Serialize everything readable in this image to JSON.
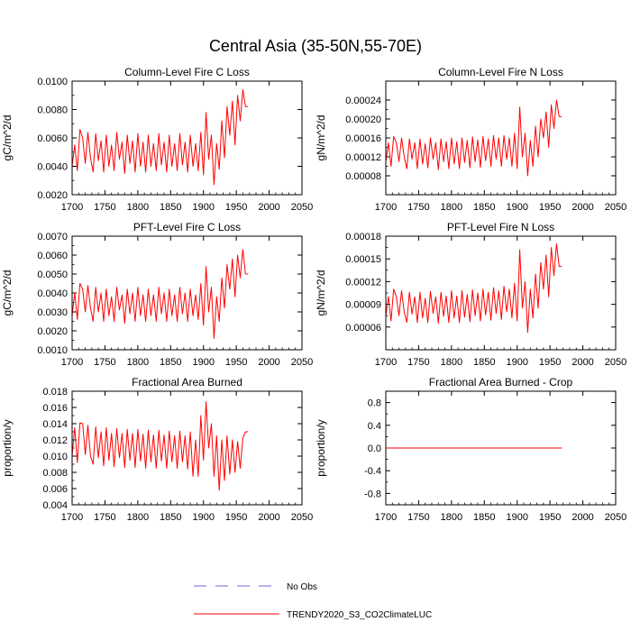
{
  "figure": {
    "title": "Central Asia (35-50N,55-70E)"
  },
  "colors": {
    "model_line": "#ff0000",
    "obs_line": "#6a6adf",
    "axis": "#000000"
  },
  "legend": {
    "entries": [
      {
        "label": "No Obs",
        "style": "dashed",
        "color": "#6a6adf"
      },
      {
        "label": "TRENDY2020_S3_CO2ClimateLUC",
        "style": "solid",
        "color": "#ff0000"
      }
    ]
  },
  "chart_data": [
    {
      "type": "line",
      "title": "Column-Level Fire C Loss",
      "ylabel": "gC/m^2/d",
      "xlabel": "",
      "xlim": [
        1700,
        2050
      ],
      "ylim": [
        0.002,
        0.01
      ],
      "xticks": [
        1700,
        1750,
        1800,
        1850,
        1900,
        1950,
        2000,
        2050
      ],
      "xtick_labels": [
        "1700",
        "1750",
        "1800",
        "1850",
        "1900",
        "1950",
        "2000",
        "2050"
      ],
      "yticks": [
        0.002,
        0.004,
        0.006,
        0.008,
        0.01
      ],
      "ytick_labels": [
        "0.0020",
        "0.0040",
        "0.0060",
        "0.0080",
        "0.0100"
      ],
      "series": [
        {
          "name": "TRENDY2020_S3_CO2ClimateLUC",
          "x_start": 1700,
          "x_step": 4,
          "values": [
            0.004,
            0.0055,
            0.0037,
            0.0066,
            0.006,
            0.0042,
            0.0064,
            0.0046,
            0.0036,
            0.0063,
            0.0044,
            0.0058,
            0.0036,
            0.0062,
            0.004,
            0.0055,
            0.0037,
            0.0064,
            0.0045,
            0.0057,
            0.0035,
            0.0062,
            0.0042,
            0.0058,
            0.0036,
            0.0063,
            0.004,
            0.0057,
            0.0036,
            0.0062,
            0.004,
            0.0056,
            0.0037,
            0.0063,
            0.0041,
            0.0057,
            0.0036,
            0.0062,
            0.004,
            0.0056,
            0.0037,
            0.0063,
            0.0041,
            0.0057,
            0.0036,
            0.0062,
            0.004,
            0.0056,
            0.0037,
            0.0064,
            0.0034,
            0.0078,
            0.0045,
            0.0062,
            0.0027,
            0.0056,
            0.0038,
            0.0072,
            0.0046,
            0.0082,
            0.0062,
            0.0086,
            0.0055,
            0.009,
            0.0072,
            0.0094,
            0.0082,
            0.0082
          ]
        }
      ]
    },
    {
      "type": "line",
      "title": "Column-Level Fire N Loss",
      "ylabel": "gN/m^2/d",
      "xlabel": "",
      "xlim": [
        1700,
        2050
      ],
      "ylim": [
        4e-05,
        0.00028
      ],
      "xticks": [
        1700,
        1750,
        1800,
        1850,
        1900,
        1950,
        2000,
        2050
      ],
      "xtick_labels": [
        "1700",
        "1750",
        "1800",
        "1850",
        "1900",
        "1950",
        "2000",
        "2050"
      ],
      "yticks": [
        8e-05,
        0.00012,
        0.00016,
        0.0002,
        0.00024
      ],
      "ytick_labels": [
        "0.00008",
        "0.00012",
        "0.00016",
        "0.00020",
        "0.00024"
      ],
      "series": [
        {
          "name": "TRENDY2020_S3_CO2ClimateLUC",
          "x_start": 1700,
          "x_step": 4,
          "values": [
            0.00011,
            0.00015,
            0.0001,
            0.000163,
            0.00015,
            0.00011,
            0.00016,
            0.00012,
            9.5e-05,
            0.000158,
            0.000115,
            0.00015,
            9.5e-05,
            0.000158,
            0.000105,
            0.000148,
            9.7e-05,
            0.00016,
            0.000115,
            0.00015,
            9.3e-05,
            0.000158,
            0.00011,
            0.000152,
            9.5e-05,
            0.00016,
            0.000105,
            0.000152,
            9.5e-05,
            0.00016,
            0.000108,
            0.000155,
            9.7e-05,
            0.000162,
            0.00011,
            0.000156,
            9.8e-05,
            0.000163,
            0.000112,
            0.000158,
            0.0001,
            0.000165,
            0.000115,
            0.00016,
            0.0001,
            0.000165,
            0.000115,
            0.00016,
            0.0001,
            0.00017,
            9.5e-05,
            0.000225,
            0.00012,
            0.00017,
            8e-05,
            0.000155,
            0.0001,
            0.000185,
            0.00012,
            0.0002,
            0.00016,
            0.000215,
            0.00014,
            0.00023,
            0.00018,
            0.00024,
            0.000205,
            0.000205
          ]
        }
      ]
    },
    {
      "type": "line",
      "title": "PFT-Level Fire C Loss",
      "ylabel": "gC/m^2/d",
      "xlabel": "",
      "xlim": [
        1700,
        2050
      ],
      "ylim": [
        0.001,
        0.007
      ],
      "xticks": [
        1700,
        1750,
        1800,
        1850,
        1900,
        1950,
        2000,
        2050
      ],
      "xtick_labels": [
        "1700",
        "1750",
        "1800",
        "1850",
        "1900",
        "1950",
        "2000",
        "2050"
      ],
      "yticks": [
        0.001,
        0.002,
        0.003,
        0.004,
        0.005,
        0.006,
        0.007
      ],
      "ytick_labels": [
        "0.0010",
        "0.0020",
        "0.0030",
        "0.0040",
        "0.0050",
        "0.0060",
        "0.0070"
      ],
      "series": [
        {
          "name": "TRENDY2020_S3_CO2ClimateLUC",
          "x_start": 1700,
          "x_step": 4,
          "values": [
            0.0028,
            0.004,
            0.0026,
            0.0045,
            0.0042,
            0.003,
            0.0044,
            0.0032,
            0.0025,
            0.0043,
            0.003,
            0.004,
            0.0025,
            0.0042,
            0.0028,
            0.0038,
            0.0025,
            0.0043,
            0.0031,
            0.0039,
            0.0024,
            0.0042,
            0.0029,
            0.004,
            0.0025,
            0.0043,
            0.0028,
            0.0039,
            0.0025,
            0.0042,
            0.0028,
            0.0039,
            0.0025,
            0.0043,
            0.0029,
            0.004,
            0.0025,
            0.0042,
            0.0028,
            0.0039,
            0.0025,
            0.0043,
            0.0029,
            0.004,
            0.0025,
            0.0042,
            0.0028,
            0.0039,
            0.0026,
            0.0045,
            0.0023,
            0.0054,
            0.003,
            0.0043,
            0.0016,
            0.0038,
            0.0025,
            0.0048,
            0.0032,
            0.0055,
            0.0042,
            0.0058,
            0.0038,
            0.006,
            0.0048,
            0.0063,
            0.005,
            0.005
          ]
        }
      ]
    },
    {
      "type": "line",
      "title": "PFT-Level Fire N Loss",
      "ylabel": "gN/m^2/d",
      "xlabel": "",
      "xlim": [
        1700,
        2050
      ],
      "ylim": [
        3e-05,
        0.00018
      ],
      "xticks": [
        1700,
        1750,
        1800,
        1850,
        1900,
        1950,
        2000,
        2050
      ],
      "xtick_labels": [
        "1700",
        "1750",
        "1800",
        "1850",
        "1900",
        "1950",
        "2000",
        "2050"
      ],
      "yticks": [
        6e-05,
        9e-05,
        0.00012,
        0.00015,
        0.00018
      ],
      "ytick_labels": [
        "0.00006",
        "0.00009",
        "0.00012",
        "0.00015",
        "0.00018"
      ],
      "series": [
        {
          "name": "TRENDY2020_S3_CO2ClimateLUC",
          "x_start": 1700,
          "x_step": 4,
          "values": [
            7.5e-05,
            0.0001,
            6.8e-05,
            0.00011,
            0.0001,
            7.5e-05,
            0.000108,
            8e-05,
            6.6e-05,
            0.000106,
            7.7e-05,
            0.0001,
            6.6e-05,
            0.000106,
            7.2e-05,
            9.8e-05,
            6.6e-05,
            0.000107,
            7.8e-05,
            0.0001,
            6.5e-05,
            0.000106,
            7.4e-05,
            0.000101,
            6.6e-05,
            0.000108,
            7.2e-05,
            0.000101,
            6.6e-05,
            0.000108,
            7.3e-05,
            0.000103,
            6.7e-05,
            0.000109,
            7.5e-05,
            0.000105,
            6.8e-05,
            0.00011,
            7.6e-05,
            0.000106,
            6.9e-05,
            0.000112,
            7.8e-05,
            0.000108,
            7e-05,
            0.000114,
            8e-05,
            0.00011,
            7.2e-05,
            0.000118,
            6.8e-05,
            0.000162,
            8.5e-05,
            0.00012,
            5.3e-05,
            0.00011,
            7.2e-05,
            0.00013,
            8.5e-05,
            0.000145,
            0.00011,
            0.000155,
            0.0001,
            0.000165,
            0.000128,
            0.00017,
            0.00014,
            0.00014
          ]
        }
      ]
    },
    {
      "type": "line",
      "title": "Fractional Area Burned",
      "ylabel": "proportion/y",
      "xlabel": "",
      "xlim": [
        1700,
        2050
      ],
      "ylim": [
        0.004,
        0.018
      ],
      "xticks": [
        1700,
        1750,
        1800,
        1850,
        1900,
        1950,
        2000,
        2050
      ],
      "xtick_labels": [
        "1700",
        "1750",
        "1800",
        "1850",
        "1900",
        "1950",
        "2000",
        "2050"
      ],
      "yticks": [
        0.004,
        0.006,
        0.008,
        0.01,
        0.012,
        0.014,
        0.016,
        0.018
      ],
      "ytick_labels": [
        "0.004",
        "0.006",
        "0.008",
        "0.010",
        "0.012",
        "0.014",
        "0.016",
        "0.018"
      ],
      "series": [
        {
          "name": "TRENDY2020_S3_CO2ClimateLUC",
          "x_start": 1700,
          "x_step": 4,
          "values": [
            0.01,
            0.0135,
            0.0092,
            0.0141,
            0.014,
            0.0102,
            0.0138,
            0.01,
            0.009,
            0.0136,
            0.0098,
            0.013,
            0.0088,
            0.0135,
            0.0095,
            0.0128,
            0.0087,
            0.0134,
            0.0098,
            0.0128,
            0.0086,
            0.0133,
            0.0095,
            0.0128,
            0.0086,
            0.0133,
            0.0094,
            0.0127,
            0.0085,
            0.0132,
            0.0093,
            0.0126,
            0.0085,
            0.0132,
            0.0094,
            0.0126,
            0.0085,
            0.0131,
            0.0093,
            0.0125,
            0.0085,
            0.0131,
            0.0093,
            0.0125,
            0.0084,
            0.013,
            0.0075,
            0.012,
            0.0075,
            0.015,
            0.0095,
            0.0167,
            0.011,
            0.014,
            0.0075,
            0.0125,
            0.0058,
            0.012,
            0.007,
            0.0125,
            0.0078,
            0.012,
            0.008,
            0.0118,
            0.0085,
            0.0122,
            0.013,
            0.013
          ]
        }
      ]
    },
    {
      "type": "line",
      "title": "Fractional Area Burned - Crop",
      "ylabel": "proportion/y",
      "xlabel": "",
      "xlim": [
        1700,
        2050
      ],
      "ylim": [
        -1.0,
        1.0
      ],
      "xticks": [
        1700,
        1750,
        1800,
        1850,
        1900,
        1950,
        2000,
        2050
      ],
      "xtick_labels": [
        "1700",
        "1750",
        "1800",
        "1850",
        "1900",
        "1950",
        "2000",
        "2050"
      ],
      "yticks": [
        -0.8,
        -0.4,
        0.0,
        0.4,
        0.8
      ],
      "ytick_labels": [
        "-0.8",
        "-0.4",
        "0.0",
        "0.4",
        "0.8"
      ],
      "series": [
        {
          "name": "TRENDY2020_S3_CO2ClimateLUC",
          "x_start": 1700,
          "x_step": 4,
          "values": [
            0.0,
            0.0,
            0.0,
            0.0,
            0.0,
            0.0,
            0.0,
            0.0,
            0.0,
            0.0,
            0.0,
            0.0,
            0.0,
            0.0,
            0.0,
            0.0,
            0.0,
            0.0,
            0.0,
            0.0,
            0.0,
            0.0,
            0.0,
            0.0,
            0.0,
            0.0,
            0.0,
            0.0,
            0.0,
            0.0,
            0.0,
            0.0,
            0.0,
            0.0,
            0.0,
            0.0,
            0.0,
            0.0,
            0.0,
            0.0,
            0.0,
            0.0,
            0.0,
            0.0,
            0.0,
            0.0,
            0.0,
            0.0,
            0.0,
            0.0,
            0.0,
            0.0,
            0.0,
            0.0,
            0.0,
            0.0,
            0.0,
            0.0,
            0.0,
            0.0,
            0.0,
            0.0,
            0.0,
            0.0,
            0.0,
            0.0,
            0.0,
            0.0
          ]
        }
      ]
    }
  ]
}
